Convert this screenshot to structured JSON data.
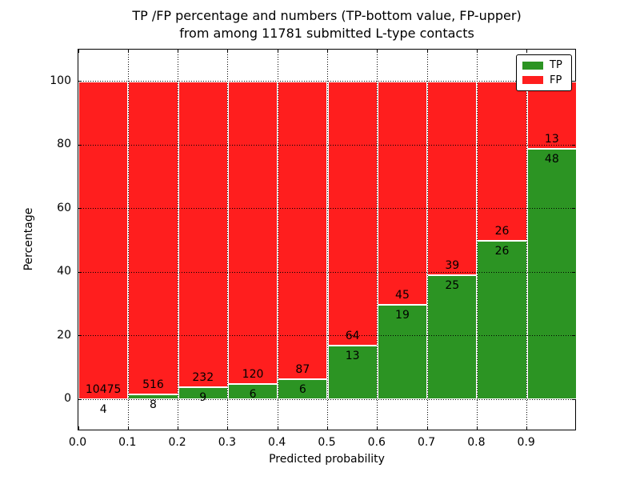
{
  "chart_data": {
    "type": "bar",
    "subtype": "stacked-percentage",
    "title_line1": "TP /FP percentage and numbers (TP-bottom value, FP-upper)",
    "title_line2": "from among 11781 submitted L-type contacts",
    "total_submitted_contacts": 11781,
    "xlabel": "Predicted probability",
    "ylabel": "Percentage",
    "xlim": [
      0.0,
      1.0
    ],
    "ylim": [
      -10,
      110
    ],
    "x_tick_labels": [
      "0.0",
      "0.1",
      "0.2",
      "0.3",
      "0.4",
      "0.5",
      "0.6",
      "0.7",
      "0.8",
      "0.9"
    ],
    "y_tick_values": [
      0,
      20,
      40,
      60,
      80,
      100
    ],
    "grid": "dotted",
    "colors": {
      "tp": "#2c9423",
      "fp": "#ff1e1e",
      "edge": "#ffffff",
      "text": "#000000"
    },
    "legend": {
      "position": "upper-right",
      "entries": [
        {
          "label": "TP",
          "color": "#2c9423"
        },
        {
          "label": "FP",
          "color": "#ff1e1e"
        }
      ]
    },
    "bins": [
      {
        "range": [
          0.0,
          0.1
        ],
        "tp": 4,
        "fp": 10475,
        "tp_percent": 0.04
      },
      {
        "range": [
          0.1,
          0.2
        ],
        "tp": 8,
        "fp": 516,
        "tp_percent": 1.53
      },
      {
        "range": [
          0.2,
          0.3
        ],
        "tp": 9,
        "fp": 232,
        "tp_percent": 3.73
      },
      {
        "range": [
          0.3,
          0.4
        ],
        "tp": 6,
        "fp": 120,
        "tp_percent": 4.76
      },
      {
        "range": [
          0.4,
          0.5
        ],
        "tp": 6,
        "fp": 87,
        "tp_percent": 6.45
      },
      {
        "range": [
          0.5,
          0.6
        ],
        "tp": 13,
        "fp": 64,
        "tp_percent": 16.88
      },
      {
        "range": [
          0.6,
          0.7
        ],
        "tp": 19,
        "fp": 45,
        "tp_percent": 29.69
      },
      {
        "range": [
          0.7,
          0.8
        ],
        "tp": 25,
        "fp": 39,
        "tp_percent": 39.06
      },
      {
        "range": [
          0.8,
          0.9
        ],
        "tp": 26,
        "fp": 26,
        "tp_percent": 50.0
      },
      {
        "range": [
          0.9,
          1.0
        ],
        "tp": 48,
        "fp": 13,
        "tp_percent": 78.69
      }
    ]
  }
}
